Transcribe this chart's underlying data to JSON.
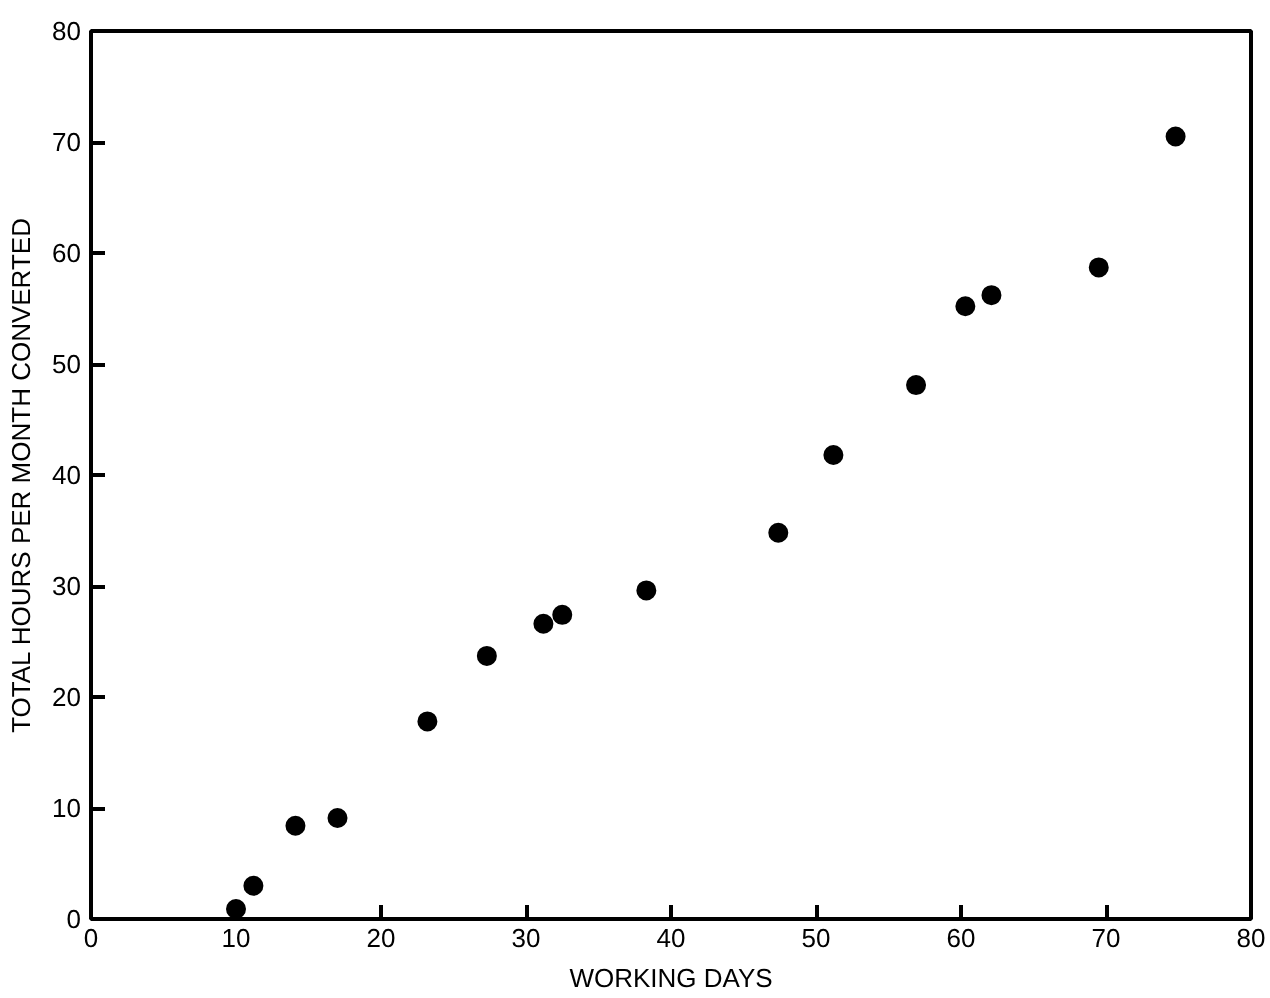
{
  "chart_data": {
    "type": "scatter",
    "xlabel": "WORKING DAYS",
    "ylabel": "TOTAL HOURS PER MONTH CONVERTED",
    "x": [
      10.0,
      11.2,
      14.1,
      17.0,
      23.2,
      27.3,
      31.2,
      32.5,
      38.3,
      47.4,
      51.2,
      56.9,
      60.3,
      62.1,
      69.5,
      74.8
    ],
    "series": [
      {
        "color": "#000000",
        "values": [
          0.9,
          3.0,
          8.4,
          9.1,
          17.8,
          23.7,
          26.6,
          27.4,
          29.6,
          34.8,
          41.8,
          48.1,
          55.2,
          56.2,
          58.7,
          70.5
        ]
      }
    ],
    "xlim": [
      0,
      80
    ],
    "ylim": [
      0,
      80
    ],
    "xticks": [
      0,
      10,
      20,
      30,
      40,
      50,
      60,
      70,
      80
    ],
    "yticks": [
      0,
      10,
      20,
      30,
      40,
      50,
      60,
      70,
      80
    ],
    "grid": false,
    "marker": "circle"
  }
}
